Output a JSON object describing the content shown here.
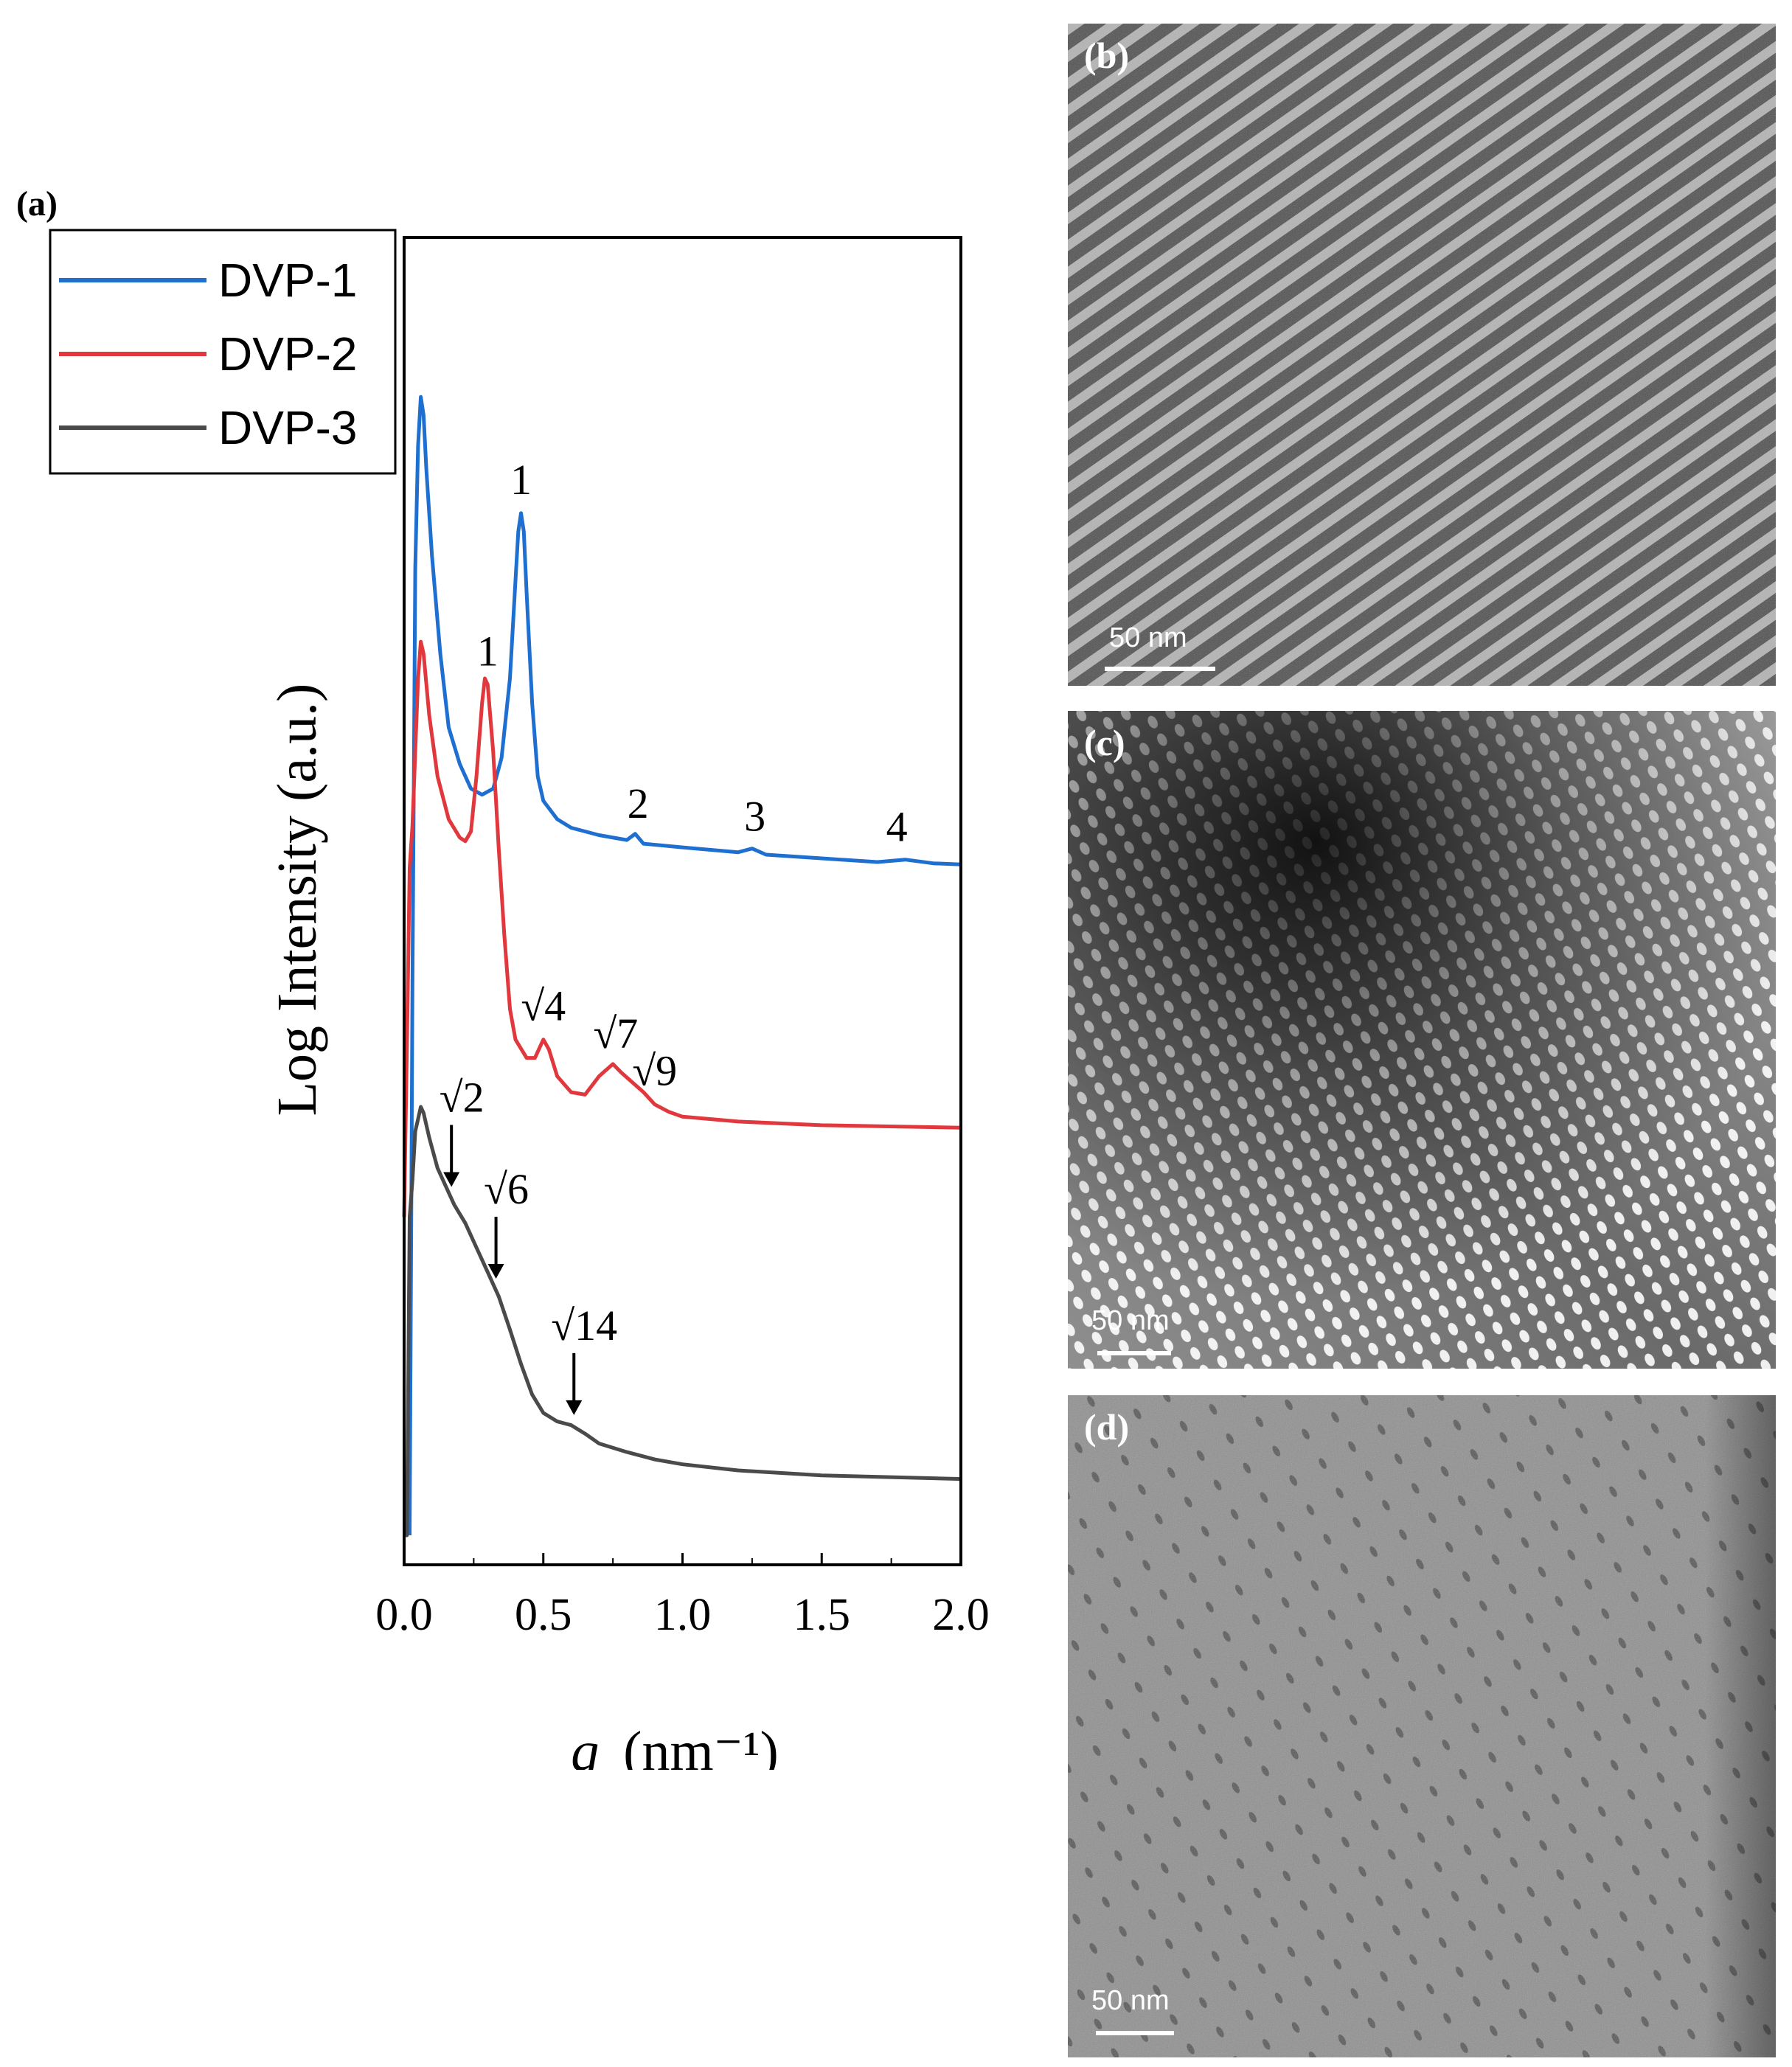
{
  "figure": {
    "panel_a_label": "(a)"
  },
  "chart_data": {
    "type": "line",
    "xlabel_var": "q",
    "xlabel_unit": "(nm⁻¹)",
    "ylabel": "Log Intensity (a.u.)",
    "xlim": [
      0.0,
      2.0
    ],
    "xticks": [
      "0.0",
      "0.5",
      "1.0",
      "1.5",
      "2.0"
    ],
    "legend_position": "top-left outside",
    "series": [
      {
        "name": "DVP-1",
        "color": "#1f6fd1",
        "points": [
          [
            0.02,
            0.0
          ],
          [
            0.03,
            0.45
          ],
          [
            0.04,
            0.79
          ],
          [
            0.05,
            0.89
          ],
          [
            0.06,
            0.93
          ],
          [
            0.07,
            0.915
          ],
          [
            0.08,
            0.87
          ],
          [
            0.1,
            0.8
          ],
          [
            0.13,
            0.72
          ],
          [
            0.16,
            0.66
          ],
          [
            0.2,
            0.63
          ],
          [
            0.24,
            0.61
          ],
          [
            0.28,
            0.605
          ],
          [
            0.32,
            0.61
          ],
          [
            0.35,
            0.635
          ],
          [
            0.38,
            0.7
          ],
          [
            0.4,
            0.78
          ],
          [
            0.41,
            0.82
          ],
          [
            0.42,
            0.835
          ],
          [
            0.43,
            0.82
          ],
          [
            0.44,
            0.77
          ],
          [
            0.46,
            0.68
          ],
          [
            0.48,
            0.62
          ],
          [
            0.5,
            0.6
          ],
          [
            0.55,
            0.585
          ],
          [
            0.6,
            0.578
          ],
          [
            0.7,
            0.572
          ],
          [
            0.8,
            0.568
          ],
          [
            0.83,
            0.573
          ],
          [
            0.86,
            0.565
          ],
          [
            1.0,
            0.562
          ],
          [
            1.2,
            0.558
          ],
          [
            1.25,
            0.561
          ],
          [
            1.3,
            0.556
          ],
          [
            1.5,
            0.553
          ],
          [
            1.7,
            0.55
          ],
          [
            1.8,
            0.552
          ],
          [
            1.9,
            0.549
          ],
          [
            2.0,
            0.548
          ]
        ]
      },
      {
        "name": "DVP-2",
        "color": "#e0383d",
        "points": [
          [
            0.0,
            0.26
          ],
          [
            0.01,
            0.4
          ],
          [
            0.02,
            0.545
          ],
          [
            0.03,
            0.58
          ],
          [
            0.04,
            0.64
          ],
          [
            0.05,
            0.7
          ],
          [
            0.06,
            0.73
          ],
          [
            0.07,
            0.72
          ],
          [
            0.09,
            0.67
          ],
          [
            0.12,
            0.62
          ],
          [
            0.16,
            0.585
          ],
          [
            0.2,
            0.57
          ],
          [
            0.22,
            0.567
          ],
          [
            0.24,
            0.575
          ],
          [
            0.26,
            0.62
          ],
          [
            0.28,
            0.68
          ],
          [
            0.29,
            0.7
          ],
          [
            0.3,
            0.695
          ],
          [
            0.32,
            0.64
          ],
          [
            0.34,
            0.56
          ],
          [
            0.36,
            0.49
          ],
          [
            0.38,
            0.43
          ],
          [
            0.4,
            0.405
          ],
          [
            0.44,
            0.39
          ],
          [
            0.47,
            0.39
          ],
          [
            0.5,
            0.405
          ],
          [
            0.52,
            0.397
          ],
          [
            0.55,
            0.375
          ],
          [
            0.6,
            0.362
          ],
          [
            0.65,
            0.36
          ],
          [
            0.7,
            0.375
          ],
          [
            0.75,
            0.385
          ],
          [
            0.78,
            0.378
          ],
          [
            0.82,
            0.37
          ],
          [
            0.86,
            0.362
          ],
          [
            0.9,
            0.352
          ],
          [
            0.95,
            0.346
          ],
          [
            1.0,
            0.342
          ],
          [
            1.2,
            0.338
          ],
          [
            1.5,
            0.335
          ],
          [
            2.0,
            0.333
          ]
        ]
      },
      {
        "name": "DVP-3",
        "color": "#4a4a4a",
        "points": [
          [
            0.0,
            0.0
          ],
          [
            0.01,
            0.0
          ],
          [
            0.02,
            0.26
          ],
          [
            0.03,
            0.29
          ],
          [
            0.04,
            0.33
          ],
          [
            0.05,
            0.34
          ],
          [
            0.06,
            0.35
          ],
          [
            0.07,
            0.345
          ],
          [
            0.09,
            0.325
          ],
          [
            0.12,
            0.3
          ],
          [
            0.15,
            0.285
          ],
          [
            0.18,
            0.27
          ],
          [
            0.22,
            0.255
          ],
          [
            0.26,
            0.235
          ],
          [
            0.3,
            0.215
          ],
          [
            0.34,
            0.195
          ],
          [
            0.38,
            0.168
          ],
          [
            0.42,
            0.14
          ],
          [
            0.46,
            0.115
          ],
          [
            0.5,
            0.1
          ],
          [
            0.55,
            0.093
          ],
          [
            0.6,
            0.09
          ],
          [
            0.65,
            0.083
          ],
          [
            0.7,
            0.075
          ],
          [
            0.8,
            0.068
          ],
          [
            0.9,
            0.062
          ],
          [
            1.0,
            0.058
          ],
          [
            1.2,
            0.053
          ],
          [
            1.5,
            0.049
          ],
          [
            2.0,
            0.046
          ]
        ]
      }
    ],
    "annotations": [
      {
        "text": "1",
        "series": "DVP-1",
        "q": 0.42
      },
      {
        "text": "2",
        "series": "DVP-1",
        "q": 0.84
      },
      {
        "text": "3",
        "series": "DVP-1",
        "q": 1.26
      },
      {
        "text": "4",
        "series": "DVP-1",
        "q": 1.77
      },
      {
        "text": "1",
        "series": "DVP-2",
        "q": 0.3
      },
      {
        "text": "√4",
        "series": "DVP-2",
        "q": 0.5
      },
      {
        "text": "√7",
        "series": "DVP-2",
        "q": 0.76
      },
      {
        "text": "√9",
        "series": "DVP-2",
        "q": 0.9
      },
      {
        "text": "√2",
        "series": "DVP-3",
        "q": 0.17,
        "arrow": true
      },
      {
        "text": "√6",
        "series": "DVP-3",
        "q": 0.33,
        "arrow": true
      },
      {
        "text": "√14",
        "series": "DVP-3",
        "q": 0.61,
        "arrow": true
      }
    ]
  },
  "tem_panels": [
    {
      "label": "(b)",
      "scale_bar": "50 nm",
      "morphology": "lamellar"
    },
    {
      "label": "(c)",
      "scale_bar": "50 nm",
      "morphology": "cylinder array"
    },
    {
      "label": "(d)",
      "scale_bar": "50 nm",
      "morphology": "spheres"
    }
  ]
}
